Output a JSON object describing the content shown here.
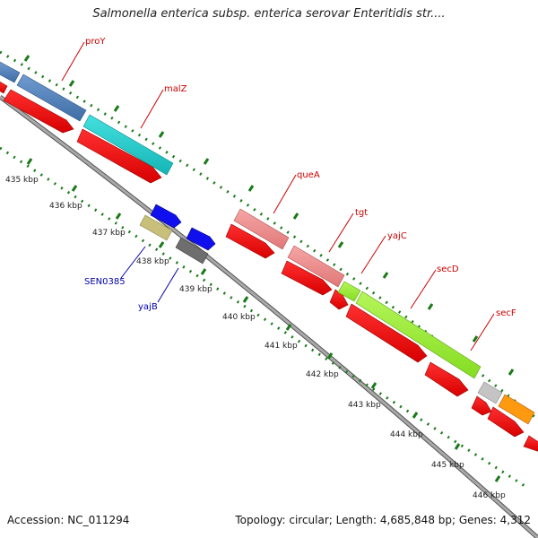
{
  "title": "Salmonella enterica subsp. enterica serovar Enteritidis str....",
  "footer": {
    "accession": "Accession: NC_011294",
    "summary": "Topology: circular; Length: 4,685,848 bp; Genes: 4,312"
  },
  "axis": {
    "unit": "kbp",
    "ticks": [
      {
        "label": "435 kbp",
        "kbp": 435
      },
      {
        "label": "436 kbp",
        "kbp": 436
      },
      {
        "label": "437 kbp",
        "kbp": 437
      },
      {
        "label": "438 kbp",
        "kbp": 438
      },
      {
        "label": "439 kbp",
        "kbp": 439
      },
      {
        "label": "440 kbp",
        "kbp": 440
      },
      {
        "label": "441 kbp",
        "kbp": 441
      },
      {
        "label": "442 kbp",
        "kbp": 442
      },
      {
        "label": "443 kbp",
        "kbp": 443
      },
      {
        "label": "444 kbp",
        "kbp": 444
      },
      {
        "label": "445 kbp",
        "kbp": 445
      },
      {
        "label": "446 kbp",
        "kbp": 446
      }
    ]
  },
  "genes": [
    {
      "name": "proY",
      "label_color": "#cc0000"
    },
    {
      "name": "malZ",
      "label_color": "#cc0000"
    },
    {
      "name": "queA",
      "label_color": "#cc0000"
    },
    {
      "name": "tgt",
      "label_color": "#cc0000"
    },
    {
      "name": "yajC",
      "label_color": "#cc0000"
    },
    {
      "name": "secD",
      "label_color": "#cc0000"
    },
    {
      "name": "secF",
      "label_color": "#cc0000"
    },
    {
      "name": "SEN0385",
      "label_color": "#0000aa"
    },
    {
      "name": "yajB",
      "label_color": "#0000aa"
    }
  ],
  "colors": {
    "cds": "#ff0000",
    "backbone": "#8c8c8c",
    "tick": "#1a7a1a",
    "proY": "#4f7fb5",
    "malZ": "#22cccc",
    "queA": "#f08a8a",
    "tgt": "#f08a8a",
    "yajC": "#99ee33",
    "secD": "#99ee33",
    "secF_gray": "#c4c4c4",
    "secF": "#ff9910",
    "reverse_blue": "#1010ee",
    "SEN0385": "#c8bf7a",
    "yajB": "#6e6e6e"
  }
}
